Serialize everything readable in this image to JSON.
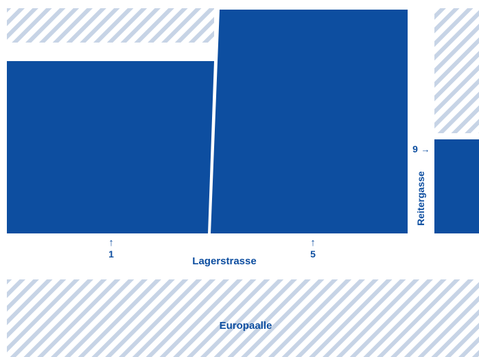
{
  "colors": {
    "building": "#0d4ea0",
    "label": "#0d4ea0",
    "hatch_stripe": "#c7d4e6",
    "background": "#ffffff"
  },
  "streets": {
    "lagerstrasse": "Lagerstrasse",
    "europaalle": "Europaalle",
    "reitergasse": "Reitergasse"
  },
  "entrances": [
    {
      "number": "1",
      "direction": "up"
    },
    {
      "number": "5",
      "direction": "up"
    },
    {
      "number": "9",
      "direction": "right"
    }
  ],
  "arrows": {
    "up": "↑",
    "right": "→"
  }
}
